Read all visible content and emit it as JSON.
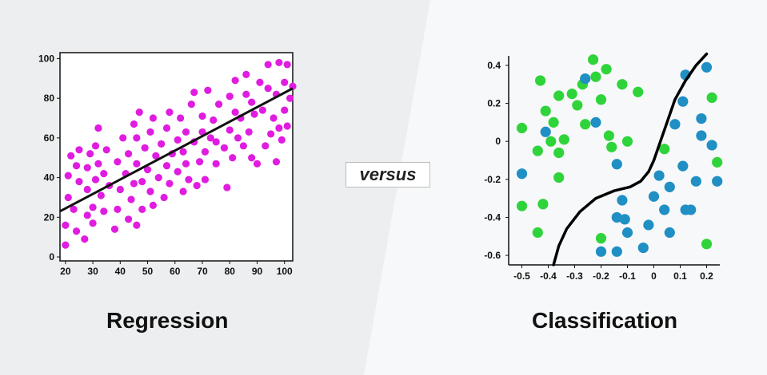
{
  "divider_label": "versus",
  "chart_data": [
    {
      "type": "scatter",
      "title": "Regression",
      "xlabel": "",
      "ylabel": "",
      "xlim": [
        18,
        103
      ],
      "ylim": [
        -2,
        103
      ],
      "xticks": [
        20,
        30,
        40,
        50,
        60,
        70,
        80,
        90,
        100
      ],
      "yticks": [
        0,
        20,
        40,
        60,
        80,
        100
      ],
      "grid": false,
      "point_color": "#e01ce0",
      "line_color": "#111111",
      "trend_line": {
        "x": [
          18,
          103
        ],
        "y": [
          23,
          85
        ]
      },
      "series": [
        {
          "points": [
            [
              20,
              6
            ],
            [
              20,
              16
            ],
            [
              21,
              30
            ],
            [
              21,
              41
            ],
            [
              22,
              51
            ],
            [
              23,
              24
            ],
            [
              24,
              13
            ],
            [
              24,
              46
            ],
            [
              25,
              54
            ],
            [
              25,
              38
            ],
            [
              27,
              9
            ],
            [
              28,
              21
            ],
            [
              28,
              34
            ],
            [
              28,
              45
            ],
            [
              29,
              52
            ],
            [
              30,
              17
            ],
            [
              30,
              25
            ],
            [
              31,
              39
            ],
            [
              31,
              56
            ],
            [
              32,
              47
            ],
            [
              32,
              65
            ],
            [
              33,
              31
            ],
            [
              34,
              23
            ],
            [
              34,
              42
            ],
            [
              35,
              54
            ],
            [
              36,
              36
            ],
            [
              38,
              14
            ],
            [
              39,
              24
            ],
            [
              39,
              48
            ],
            [
              40,
              34
            ],
            [
              41,
              60
            ],
            [
              42,
              42
            ],
            [
              43,
              52
            ],
            [
              43,
              19
            ],
            [
              44,
              29
            ],
            [
              45,
              37
            ],
            [
              45,
              67
            ],
            [
              46,
              16
            ],
            [
              46,
              47
            ],
            [
              46,
              60
            ],
            [
              47,
              73
            ],
            [
              48,
              38
            ],
            [
              48,
              24
            ],
            [
              49,
              55
            ],
            [
              50,
              44
            ],
            [
              51,
              33
            ],
            [
              51,
              63
            ],
            [
              52,
              26
            ],
            [
              52,
              70
            ],
            [
              53,
              51
            ],
            [
              54,
              40
            ],
            [
              55,
              57
            ],
            [
              56,
              30
            ],
            [
              57,
              65
            ],
            [
              57,
              46
            ],
            [
              58,
              37
            ],
            [
              58,
              73
            ],
            [
              59,
              52
            ],
            [
              61,
              43
            ],
            [
              61,
              59
            ],
            [
              62,
              70
            ],
            [
              63,
              33
            ],
            [
              63,
              53
            ],
            [
              64,
              47
            ],
            [
              64,
              63
            ],
            [
              65,
              39
            ],
            [
              66,
              77
            ],
            [
              67,
              83
            ],
            [
              67,
              58
            ],
            [
              68,
              36
            ],
            [
              69,
              48
            ],
            [
              70,
              63
            ],
            [
              70,
              71
            ],
            [
              71,
              39
            ],
            [
              71,
              53
            ],
            [
              72,
              84
            ],
            [
              73,
              60
            ],
            [
              74,
              69
            ],
            [
              75,
              47
            ],
            [
              75,
              58
            ],
            [
              76,
              77
            ],
            [
              78,
              55
            ],
            [
              79,
              35
            ],
            [
              80,
              64
            ],
            [
              80,
              81
            ],
            [
              81,
              50
            ],
            [
              82,
              73
            ],
            [
              82,
              89
            ],
            [
              83,
              60
            ],
            [
              84,
              70
            ],
            [
              85,
              56
            ],
            [
              86,
              82
            ],
            [
              86,
              92
            ],
            [
              87,
              63
            ],
            [
              88,
              78
            ],
            [
              88,
              50
            ],
            [
              89,
              72
            ],
            [
              90,
              47
            ],
            [
              91,
              88
            ],
            [
              92,
              74
            ],
            [
              93,
              56
            ],
            [
              94,
              85
            ],
            [
              94,
              97
            ],
            [
              95,
              62
            ],
            [
              96,
              70
            ],
            [
              97,
              82
            ],
            [
              97,
              48
            ],
            [
              98,
              98
            ],
            [
              98,
              65
            ],
            [
              99,
              59
            ],
            [
              100,
              88
            ],
            [
              100,
              74
            ],
            [
              101,
              97
            ],
            [
              101,
              66
            ],
            [
              102,
              80
            ],
            [
              103,
              86
            ]
          ]
        }
      ]
    },
    {
      "type": "scatter",
      "title": "Classification",
      "xlabel": "",
      "ylabel": "",
      "xlim": [
        -0.55,
        0.25
      ],
      "ylim": [
        -0.65,
        0.45
      ],
      "xticks": [
        -0.5,
        -0.4,
        -0.3,
        -0.2,
        -0.1,
        0,
        0.1,
        0.2
      ],
      "xtick_labels": [
        "-0.5",
        "-0.4",
        "-0.3",
        "-0.2",
        "-0.1",
        "0",
        "0.1",
        "0.2"
      ],
      "yticks": [
        0.4,
        0.2,
        0,
        -0.2,
        -0.4,
        -0.6
      ],
      "ytick_labels": [
        "0.4",
        "0.2",
        "0",
        "-0.2",
        "-0.4",
        "-0.6"
      ],
      "grid": false,
      "boundary_color": "#000000",
      "decision_boundary": {
        "x": [
          -0.38,
          -0.36,
          -0.33,
          -0.28,
          -0.22,
          -0.15,
          -0.09,
          -0.05,
          -0.02,
          0.0,
          0.02,
          0.05,
          0.08,
          0.12,
          0.16,
          0.2
        ],
        "y": [
          -0.65,
          -0.55,
          -0.46,
          -0.37,
          -0.3,
          -0.26,
          -0.24,
          -0.21,
          -0.16,
          -0.1,
          -0.02,
          0.1,
          0.22,
          0.32,
          0.4,
          0.46
        ]
      },
      "series": [
        {
          "color": "#2fd43a",
          "points": [
            [
              -0.5,
              0.07
            ],
            [
              -0.44,
              -0.05
            ],
            [
              -0.43,
              0.32
            ],
            [
              -0.41,
              0.16
            ],
            [
              -0.39,
              0.0
            ],
            [
              -0.38,
              0.1
            ],
            [
              -0.36,
              -0.06
            ],
            [
              -0.36,
              0.24
            ],
            [
              -0.34,
              0.01
            ],
            [
              -0.31,
              0.25
            ],
            [
              -0.29,
              0.19
            ],
            [
              -0.27,
              0.3
            ],
            [
              -0.26,
              0.09
            ],
            [
              -0.23,
              0.43
            ],
            [
              -0.22,
              0.34
            ],
            [
              -0.2,
              0.22
            ],
            [
              -0.18,
              0.38
            ],
            [
              -0.17,
              0.03
            ],
            [
              -0.16,
              -0.03
            ],
            [
              -0.12,
              0.3
            ],
            [
              -0.1,
              0.0
            ],
            [
              -0.06,
              0.26
            ],
            [
              -0.5,
              -0.34
            ],
            [
              -0.44,
              -0.48
            ],
            [
              -0.42,
              -0.33
            ],
            [
              -0.36,
              -0.19
            ],
            [
              -0.2,
              -0.51
            ],
            [
              0.04,
              -0.04
            ],
            [
              0.22,
              0.23
            ],
            [
              0.24,
              -0.11
            ],
            [
              0.2,
              -0.54
            ]
          ]
        },
        {
          "color": "#1f8fc4",
          "points": [
            [
              -0.5,
              -0.17
            ],
            [
              -0.41,
              0.05
            ],
            [
              -0.26,
              0.33
            ],
            [
              -0.22,
              0.1
            ],
            [
              -0.14,
              -0.12
            ],
            [
              -0.12,
              -0.31
            ],
            [
              -0.11,
              -0.41
            ],
            [
              -0.1,
              -0.48
            ],
            [
              -0.14,
              -0.58
            ],
            [
              -0.04,
              -0.56
            ],
            [
              -0.02,
              -0.44
            ],
            [
              0.0,
              -0.29
            ],
            [
              0.02,
              -0.18
            ],
            [
              0.04,
              -0.36
            ],
            [
              0.06,
              -0.48
            ],
            [
              0.06,
              -0.24
            ],
            [
              0.08,
              0.09
            ],
            [
              0.11,
              -0.13
            ],
            [
              0.11,
              0.21
            ],
            [
              0.12,
              0.35
            ],
            [
              0.14,
              -0.36
            ],
            [
              0.16,
              -0.21
            ],
            [
              0.18,
              0.12
            ],
            [
              0.18,
              0.03
            ],
            [
              0.2,
              0.39
            ],
            [
              0.22,
              -0.02
            ],
            [
              0.24,
              -0.21
            ],
            [
              -0.2,
              -0.58
            ],
            [
              0.12,
              -0.36
            ],
            [
              -0.14,
              -0.4
            ]
          ]
        }
      ]
    }
  ],
  "captions": {
    "left": "Regression",
    "right": "Classification"
  }
}
